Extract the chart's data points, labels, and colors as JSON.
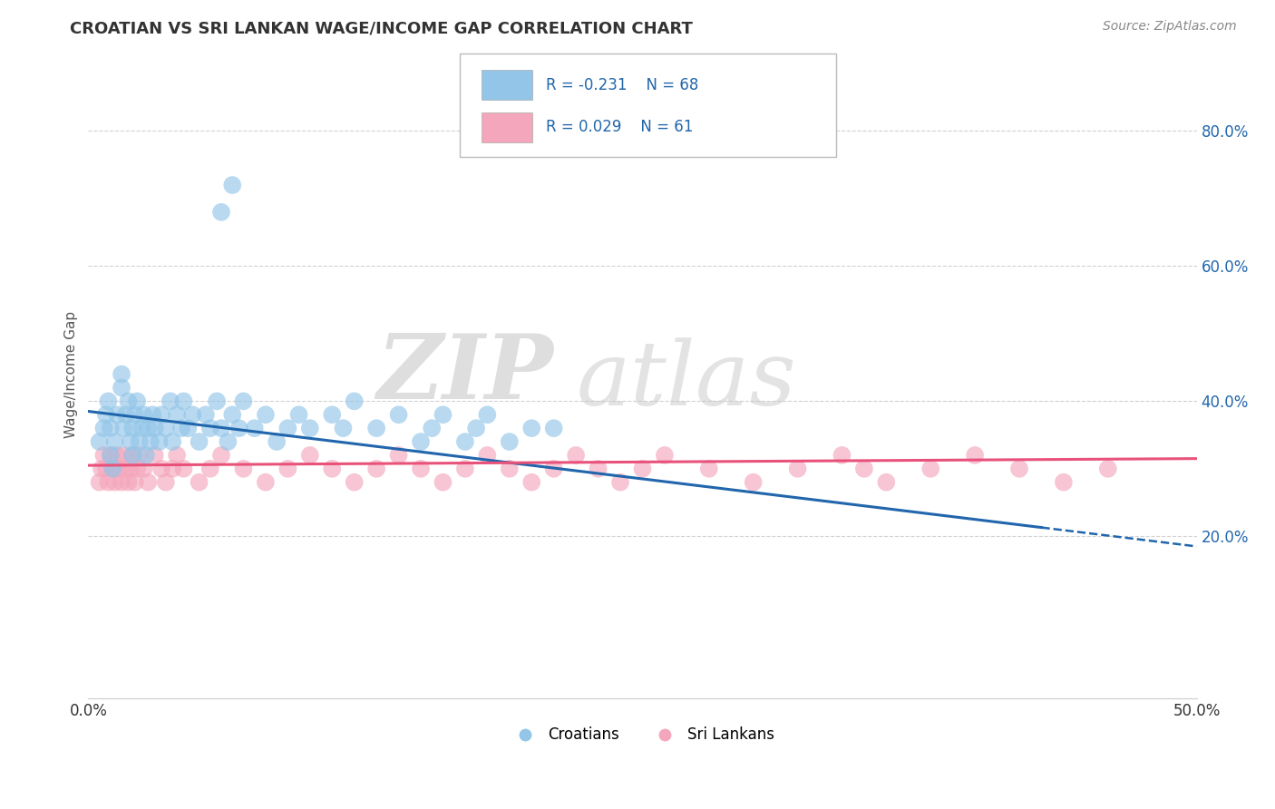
{
  "title": "CROATIAN VS SRI LANKAN WAGE/INCOME GAP CORRELATION CHART",
  "source_text": "Source: ZipAtlas.com",
  "ylabel": "Wage/Income Gap",
  "xlim": [
    0.0,
    0.5
  ],
  "ylim": [
    -0.04,
    0.92
  ],
  "xtick_labels": [
    "0.0%",
    "",
    "",
    "",
    "",
    "50.0%"
  ],
  "xtick_vals": [
    0.0,
    0.1,
    0.2,
    0.3,
    0.4,
    0.5
  ],
  "ytick_labels": [
    "20.0%",
    "40.0%",
    "60.0%",
    "80.0%"
  ],
  "ytick_vals": [
    0.2,
    0.4,
    0.6,
    0.8
  ],
  "croatian_R": -0.231,
  "croatian_N": 68,
  "srilankan_R": 0.029,
  "srilankan_N": 61,
  "croatian_color": "#92c5e8",
  "srilankan_color": "#f4a6bc",
  "croatian_line_color": "#2166ac",
  "srilankan_line_color": "#e8527a",
  "watermark_zip": "ZIP",
  "watermark_atlas": "atlas",
  "background_color": "#ffffff",
  "grid_color": "#cccccc",
  "cr_line_start_y": 0.385,
  "cr_line_end_y": 0.185,
  "sl_line_start_y": 0.305,
  "sl_line_end_y": 0.315,
  "croatian_x": [
    0.005,
    0.007,
    0.008,
    0.009,
    0.01,
    0.01,
    0.011,
    0.012,
    0.013,
    0.015,
    0.015,
    0.016,
    0.017,
    0.018,
    0.019,
    0.02,
    0.02,
    0.021,
    0.022,
    0.023,
    0.024,
    0.025,
    0.026,
    0.027,
    0.028,
    0.029,
    0.03,
    0.032,
    0.033,
    0.035,
    0.037,
    0.038,
    0.04,
    0.042,
    0.043,
    0.045,
    0.047,
    0.05,
    0.053,
    0.055,
    0.058,
    0.06,
    0.063,
    0.065,
    0.068,
    0.07,
    0.075,
    0.08,
    0.085,
    0.09,
    0.095,
    0.1,
    0.11,
    0.115,
    0.12,
    0.13,
    0.14,
    0.15,
    0.155,
    0.16,
    0.17,
    0.175,
    0.18,
    0.19,
    0.2,
    0.21,
    0.06,
    0.065
  ],
  "croatian_y": [
    0.34,
    0.36,
    0.38,
    0.4,
    0.32,
    0.36,
    0.3,
    0.34,
    0.38,
    0.42,
    0.44,
    0.36,
    0.38,
    0.4,
    0.34,
    0.32,
    0.36,
    0.38,
    0.4,
    0.34,
    0.36,
    0.38,
    0.32,
    0.36,
    0.34,
    0.38,
    0.36,
    0.34,
    0.38,
    0.36,
    0.4,
    0.34,
    0.38,
    0.36,
    0.4,
    0.36,
    0.38,
    0.34,
    0.38,
    0.36,
    0.4,
    0.36,
    0.34,
    0.38,
    0.36,
    0.4,
    0.36,
    0.38,
    0.34,
    0.36,
    0.38,
    0.36,
    0.38,
    0.36,
    0.4,
    0.36,
    0.38,
    0.34,
    0.36,
    0.38,
    0.34,
    0.36,
    0.38,
    0.34,
    0.36,
    0.36,
    0.68,
    0.72
  ],
  "srilankan_x": [
    0.005,
    0.006,
    0.007,
    0.008,
    0.009,
    0.01,
    0.011,
    0.012,
    0.013,
    0.014,
    0.015,
    0.016,
    0.017,
    0.018,
    0.019,
    0.02,
    0.021,
    0.022,
    0.023,
    0.025,
    0.027,
    0.03,
    0.033,
    0.035,
    0.038,
    0.04,
    0.043,
    0.05,
    0.055,
    0.06,
    0.07,
    0.08,
    0.09,
    0.1,
    0.11,
    0.12,
    0.13,
    0.14,
    0.15,
    0.16,
    0.17,
    0.18,
    0.19,
    0.2,
    0.21,
    0.22,
    0.23,
    0.24,
    0.25,
    0.26,
    0.28,
    0.3,
    0.32,
    0.34,
    0.35,
    0.36,
    0.38,
    0.4,
    0.42,
    0.44,
    0.46
  ],
  "srilankan_y": [
    0.28,
    0.3,
    0.32,
    0.3,
    0.28,
    0.32,
    0.3,
    0.28,
    0.32,
    0.3,
    0.28,
    0.32,
    0.3,
    0.28,
    0.3,
    0.32,
    0.28,
    0.3,
    0.32,
    0.3,
    0.28,
    0.32,
    0.3,
    0.28,
    0.3,
    0.32,
    0.3,
    0.28,
    0.3,
    0.32,
    0.3,
    0.28,
    0.3,
    0.32,
    0.3,
    0.28,
    0.3,
    0.32,
    0.3,
    0.28,
    0.3,
    0.32,
    0.3,
    0.28,
    0.3,
    0.32,
    0.3,
    0.28,
    0.3,
    0.32,
    0.3,
    0.28,
    0.3,
    0.32,
    0.3,
    0.28,
    0.3,
    0.32,
    0.3,
    0.28,
    0.3
  ]
}
